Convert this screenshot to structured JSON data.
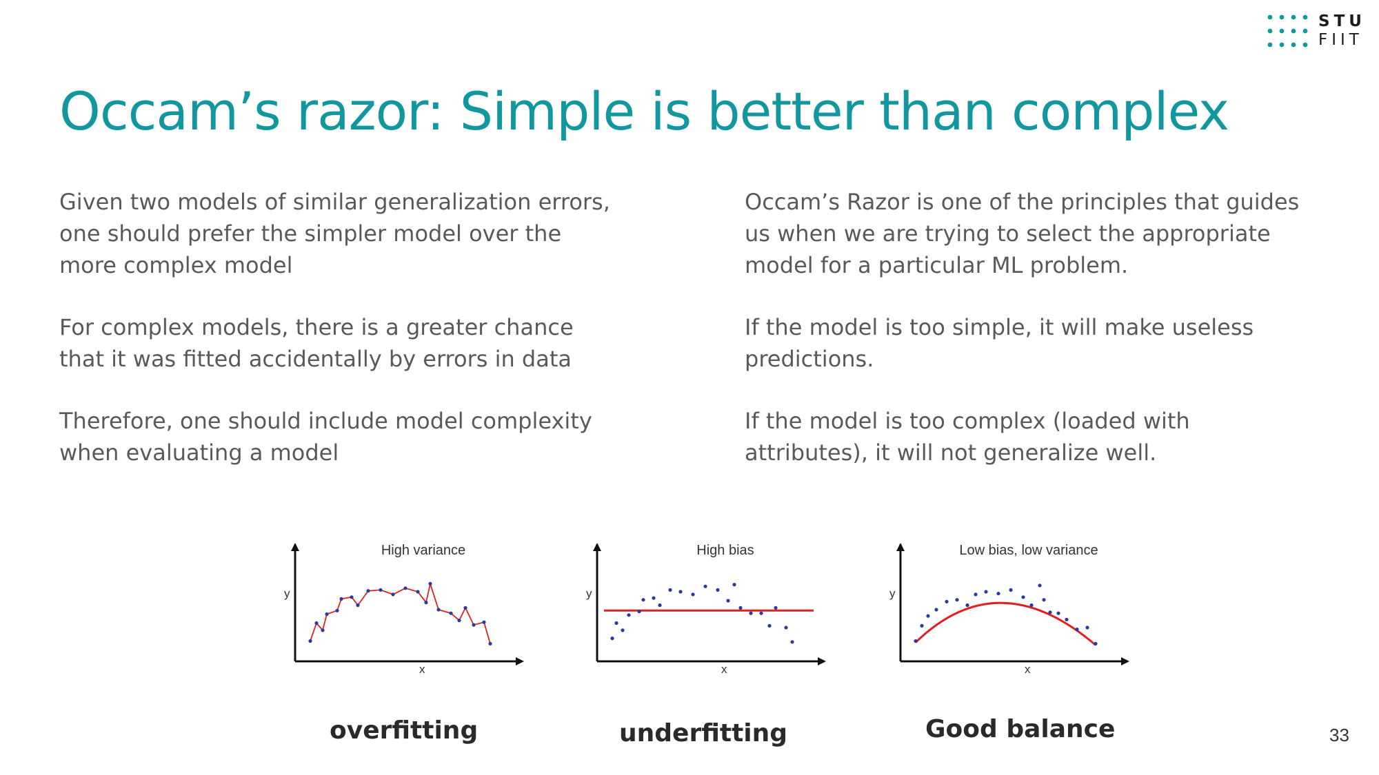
{
  "logo": {
    "line1": "STU",
    "line2": "FIIT",
    "dot_color": "#12979f"
  },
  "title": "Occam’s razor: Simple is better than complex",
  "left_column": [
    "Given two models of similar generalization errors,\none should prefer the simpler model over the\nmore complex model",
    "For complex models, there is a greater chance\nthat it was fitted accidentally by errors in data",
    "Therefore, one should include model complexity\nwhen evaluating a model"
  ],
  "right_column": [
    "Occam’s Razor is one of the principles that guides\nus when we are trying to select the appropriate\nmodel for a particular ML problem.",
    "If the model is too simple, it will make useless\npredictions.",
    "If the model is too complex (loaded with\nattributes), it will not generalize well."
  ],
  "figure": {
    "panels": [
      {
        "title": "High variance",
        "xlabel": "x",
        "ylabel": "y",
        "caption": "overfitting",
        "fit": "interpolating"
      },
      {
        "title": "High bias",
        "xlabel": "x",
        "ylabel": "y",
        "caption": "underfitting",
        "fit": "constant"
      },
      {
        "title": "Low bias, low variance",
        "xlabel": "x",
        "ylabel": "y",
        "caption": "Good balance",
        "fit": "quadratic"
      }
    ],
    "point_color": "#2b3a9e",
    "fit_color": "#e02020"
  },
  "page_number": "33"
}
